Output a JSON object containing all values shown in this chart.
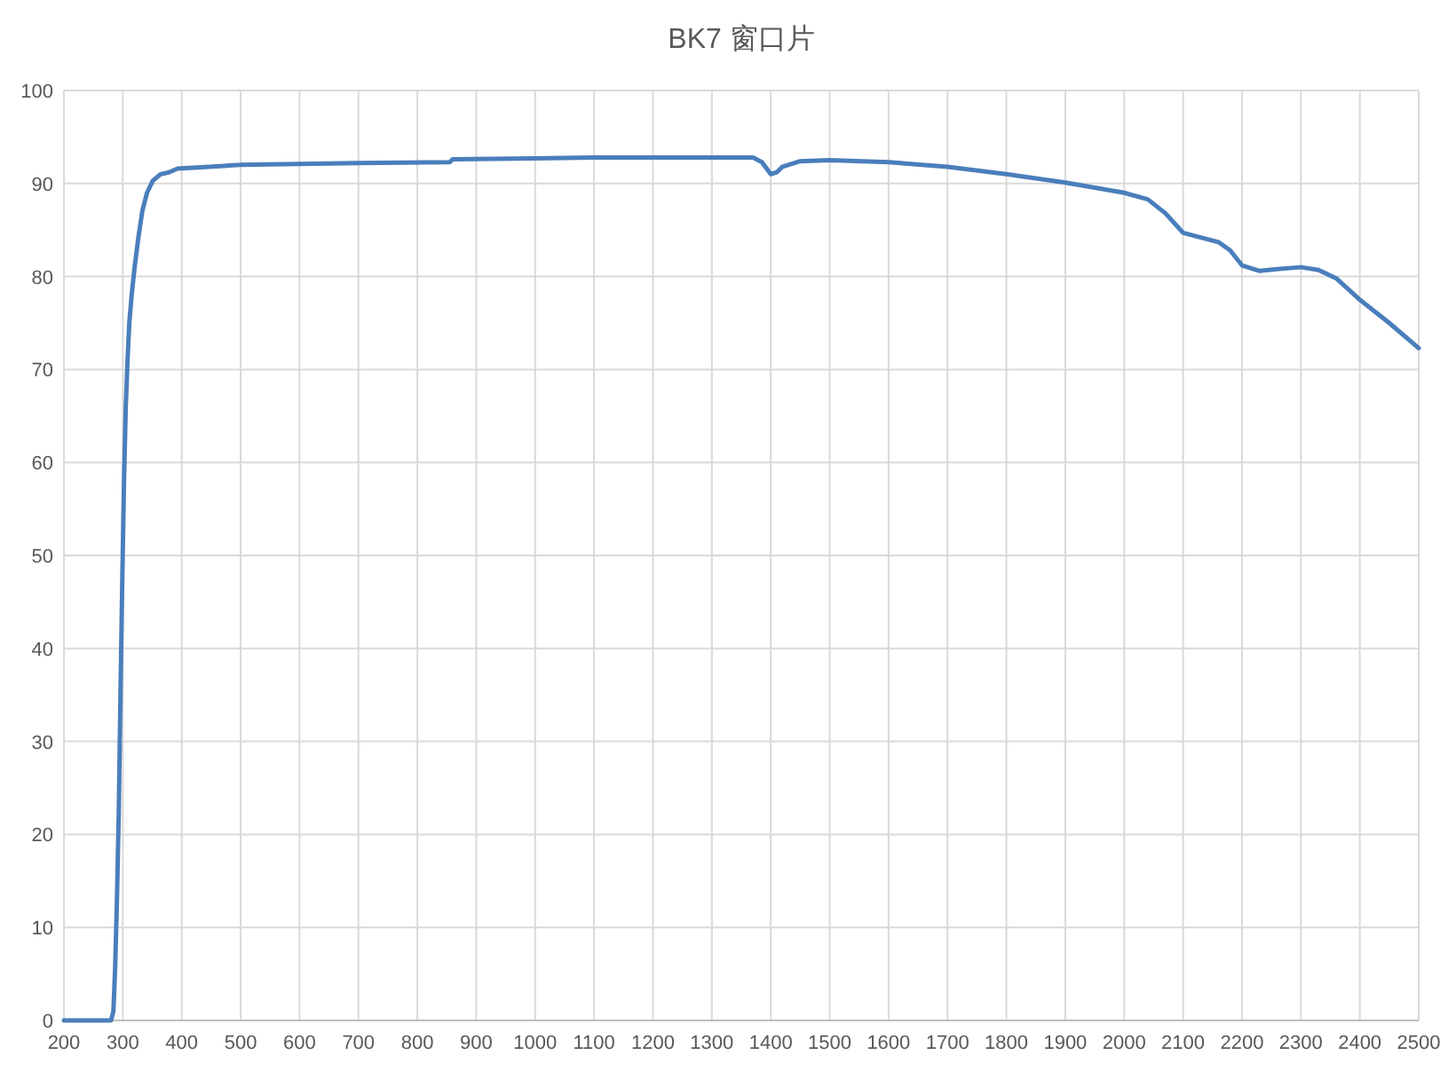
{
  "chart_data": {
    "type": "line",
    "title": "BK7 窗口片",
    "x": [
      200,
      250,
      280,
      284,
      287,
      290,
      293,
      296,
      299,
      302,
      305,
      308,
      311,
      315,
      320,
      326,
      333,
      341,
      351,
      364,
      378,
      393,
      420,
      500,
      600,
      700,
      855,
      860,
      1000,
      1100,
      1200,
      1300,
      1370,
      1385,
      1400,
      1410,
      1420,
      1450,
      1500,
      1600,
      1700,
      1800,
      1900,
      2000,
      2040,
      2070,
      2100,
      2130,
      2160,
      2180,
      2200,
      2230,
      2260,
      2300,
      2330,
      2360,
      2400,
      2450,
      2500
    ],
    "series": [
      {
        "color": "#4a7ebb",
        "values": [
          0,
          0,
          0,
          1,
          5.7,
          13,
          22,
          35,
          47,
          58,
          66,
          71,
          75,
          78,
          81,
          84,
          87,
          89,
          90.3,
          91,
          91.2,
          91.6,
          91.7,
          92.0,
          92.1,
          92.2,
          92.3,
          92.6,
          92.7,
          92.8,
          92.8,
          92.8,
          92.8,
          92.3,
          91.0,
          91.2,
          91.8,
          92.4,
          92.5,
          92.3,
          91.8,
          91.0,
          90.1,
          89.0,
          88.3,
          86.8,
          84.7,
          84.2,
          83.7,
          82.8,
          81.2,
          80.6,
          80.8,
          81.0,
          80.7,
          79.8,
          77.5,
          75.0,
          72.3
        ]
      }
    ],
    "xlim": [
      200,
      2500
    ],
    "xticks": [
      200,
      300,
      400,
      500,
      600,
      700,
      800,
      900,
      1000,
      1100,
      1200,
      1300,
      1400,
      1500,
      1600,
      1700,
      1800,
      1900,
      2000,
      2100,
      2200,
      2300,
      2400,
      2500
    ],
    "ylim": [
      0,
      100
    ],
    "yticks": [
      0,
      10,
      20,
      30,
      40,
      50,
      60,
      70,
      80,
      90,
      100
    ],
    "grid": true,
    "marker": "none",
    "line_style": "solid"
  }
}
